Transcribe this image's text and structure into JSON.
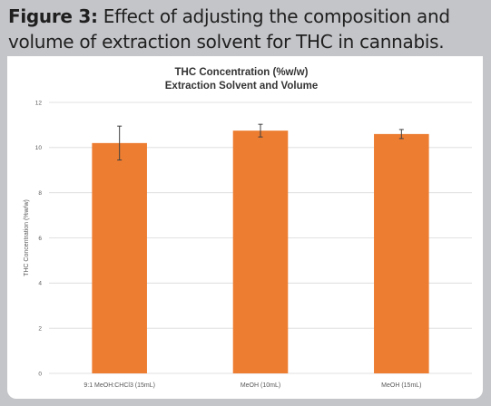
{
  "figure": {
    "label": "Figure 3:",
    "caption": "Effect of adjusting the composition and volume of extraction solvent for THC in cannabis."
  },
  "colors": {
    "bar": "#ed7d31",
    "grid": "#d9d9d9",
    "frame": "#c4c5c9",
    "error_bar": "#404040"
  },
  "chart_data": {
    "type": "bar",
    "title_lines": [
      "THC Concentration (%w/w)",
      "Extraction Solvent and Volume"
    ],
    "categories": [
      "9:1 MeOH:CHCl3 (15mL)",
      "MeOH (10mL)",
      "MeOH (15mL)"
    ],
    "values": [
      10.2,
      10.75,
      10.6
    ],
    "errors": [
      0.75,
      0.28,
      0.2
    ],
    "xlabel": "",
    "ylabel": "THC Concentration (%w/w)",
    "ylim": [
      0,
      12
    ],
    "yticks": [
      "0",
      "2",
      "4",
      "6",
      "8",
      "10",
      "12"
    ],
    "grid": true,
    "legend": "none"
  }
}
